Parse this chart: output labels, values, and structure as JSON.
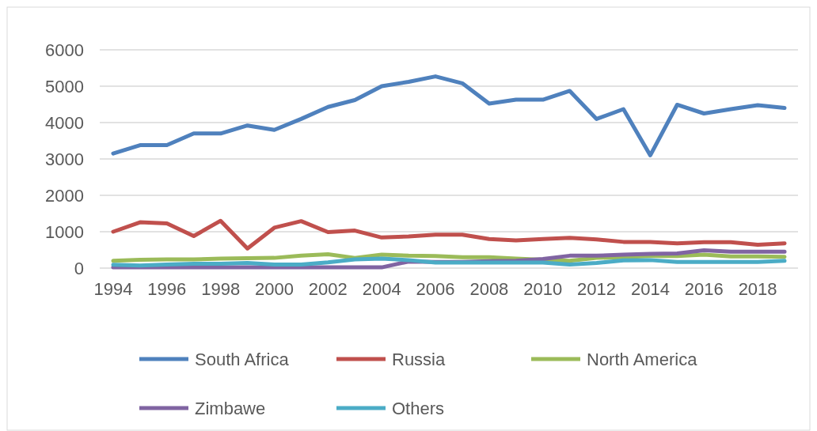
{
  "chart_data": {
    "type": "line",
    "x": [
      1994,
      1995,
      1996,
      1997,
      1998,
      1999,
      2000,
      2001,
      2002,
      2003,
      2004,
      2005,
      2006,
      2007,
      2008,
      2009,
      2010,
      2011,
      2012,
      2013,
      2014,
      2015,
      2016,
      2017,
      2018,
      2019
    ],
    "xlim": [
      1993.5,
      2019.5
    ],
    "xticks": [
      1994,
      1996,
      1998,
      2000,
      2002,
      2004,
      2006,
      2008,
      2010,
      2012,
      2014,
      2016,
      2018
    ],
    "ylim": [
      0,
      6000
    ],
    "yticks": [
      0,
      1000,
      2000,
      3000,
      4000,
      5000,
      6000
    ],
    "grid": "y",
    "legend": "bottom",
    "series": [
      {
        "name": "South Africa",
        "color": "#4f81bd",
        "values": [
          3150,
          3380,
          3380,
          3700,
          3700,
          3920,
          3800,
          4100,
          4430,
          4620,
          5000,
          5120,
          5270,
          5080,
          4520,
          4630,
          4630,
          4870,
          4100,
          4370,
          3100,
          4490,
          4250,
          4370,
          4480,
          4400
        ]
      },
      {
        "name": "Russia",
        "color": "#c0504d",
        "values": [
          1000,
          1260,
          1230,
          880,
          1300,
          540,
          1110,
          1290,
          990,
          1030,
          840,
          870,
          920,
          920,
          800,
          760,
          800,
          830,
          790,
          720,
          720,
          680,
          710,
          710,
          640,
          680
        ]
      },
      {
        "name": "North America",
        "color": "#9bbb59",
        "values": [
          200,
          230,
          240,
          240,
          260,
          270,
          280,
          340,
          380,
          280,
          370,
          340,
          330,
          300,
          300,
          260,
          230,
          200,
          280,
          300,
          330,
          330,
          370,
          320,
          320,
          310
        ]
      },
      {
        "name": "Zimbawe",
        "color": "#8064a2",
        "values": [
          20,
          20,
          20,
          20,
          20,
          20,
          20,
          20,
          20,
          20,
          20,
          180,
          170,
          170,
          190,
          200,
          250,
          340,
          340,
          370,
          390,
          400,
          490,
          450,
          450,
          450
        ]
      },
      {
        "name": "Others",
        "color": "#4bacc6",
        "values": [
          90,
          70,
          100,
          120,
          120,
          140,
          100,
          100,
          160,
          240,
          260,
          220,
          150,
          150,
          150,
          150,
          150,
          100,
          140,
          210,
          220,
          170,
          170,
          170,
          170,
          200
        ]
      }
    ]
  }
}
